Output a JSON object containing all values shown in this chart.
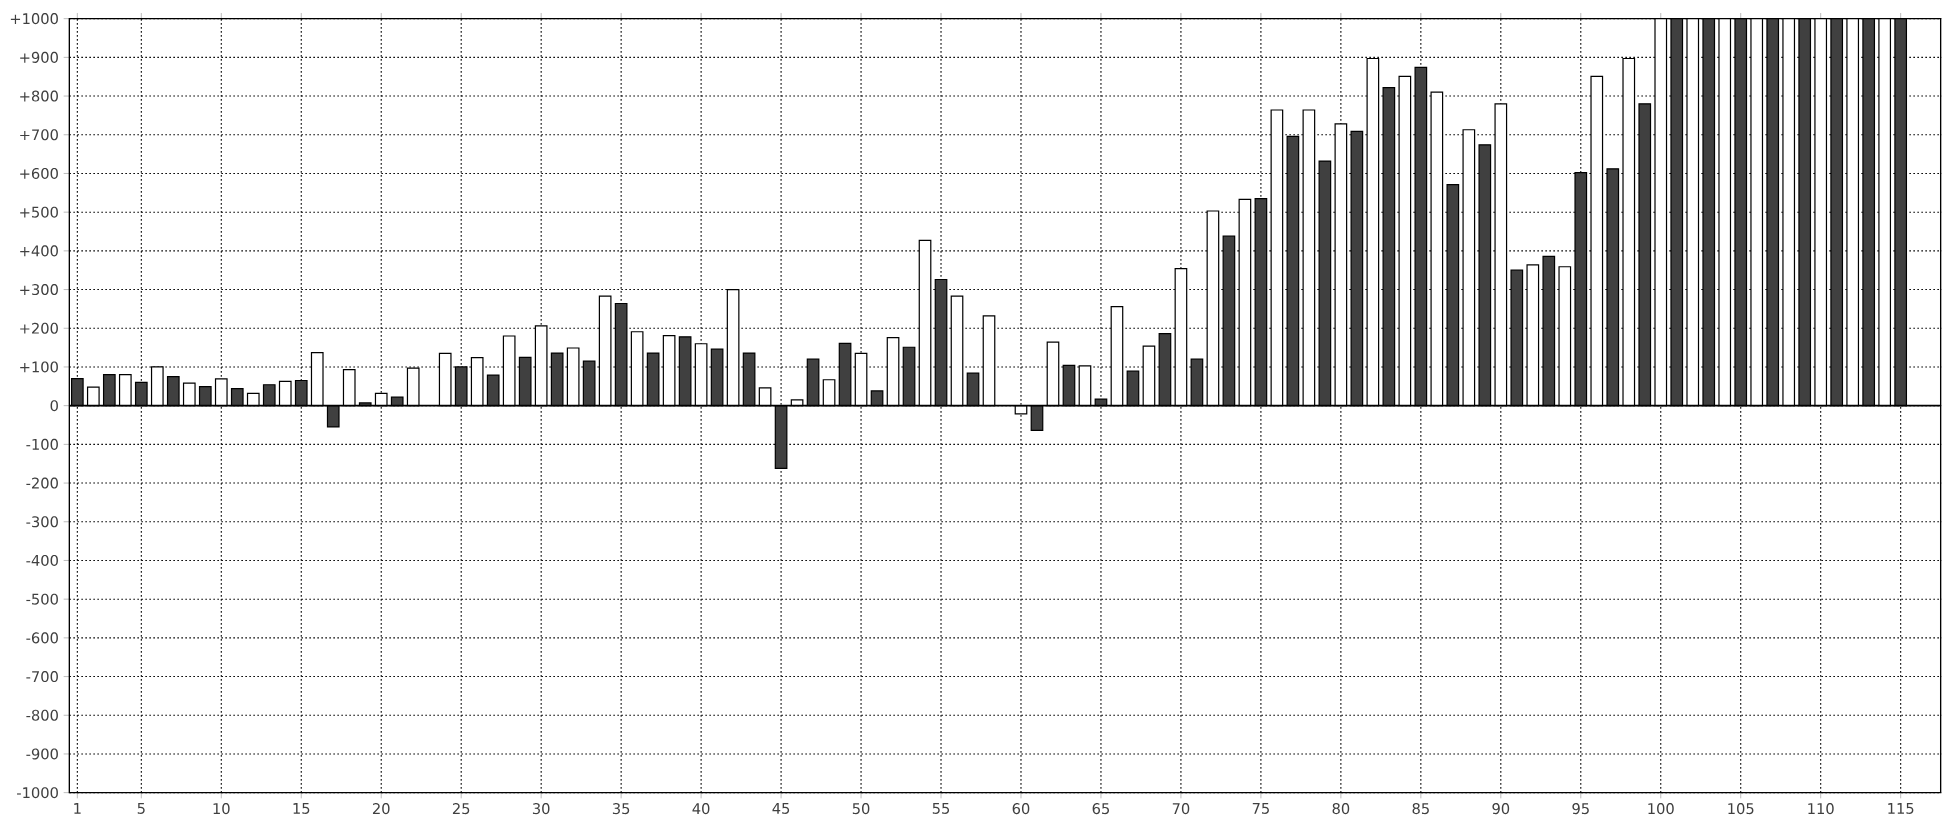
{
  "chart_data": {
    "type": "bar",
    "x": [
      1,
      2,
      3,
      4,
      5,
      6,
      7,
      8,
      9,
      10,
      11,
      12,
      13,
      14,
      15,
      16,
      17,
      18,
      19,
      20,
      21,
      22,
      23,
      24,
      25,
      26,
      27,
      28,
      29,
      30,
      31,
      32,
      33,
      34,
      35,
      36,
      37,
      38,
      39,
      40,
      41,
      42,
      43,
      44,
      45,
      46,
      47,
      48,
      49,
      50,
      51,
      52,
      53,
      54,
      55,
      56,
      57,
      58,
      59,
      60,
      61,
      62,
      63,
      64,
      65,
      66,
      67,
      68,
      69,
      70,
      71,
      72,
      73,
      74,
      75,
      76,
      77,
      78,
      79,
      80,
      81,
      82,
      83,
      84,
      85,
      86,
      87,
      88,
      89,
      90,
      91,
      92,
      93,
      94,
      95,
      96,
      97,
      98,
      99,
      100,
      101,
      102,
      103,
      104,
      105,
      106,
      107,
      108,
      109,
      110,
      111,
      112,
      113,
      114,
      115
    ],
    "values": [
      70,
      48,
      80,
      80,
      60,
      100,
      75,
      58,
      49,
      69,
      44,
      32,
      54,
      63,
      65,
      137,
      -55,
      93,
      7,
      32,
      22,
      97,
      null,
      135,
      100,
      124,
      79,
      180,
      125,
      206,
      136,
      149,
      115,
      283,
      264,
      191,
      136,
      181,
      178,
      160,
      146,
      300,
      136,
      46,
      -162,
      15,
      120,
      67,
      161,
      135,
      38,
      176,
      151,
      427,
      326,
      283,
      84,
      232,
      null,
      -21,
      -64,
      164,
      104,
      103,
      17,
      256,
      89,
      154,
      186,
      354,
      120,
      503,
      438,
      533,
      535,
      764,
      696,
      764,
      632,
      728,
      709,
      897,
      822,
      851,
      874,
      810,
      571,
      713,
      674,
      780,
      350,
      364,
      386,
      359,
      602,
      851,
      612,
      897,
      780,
      1000,
      1000,
      1000,
      1000,
      1000,
      1000,
      1000,
      1000,
      1000,
      1000,
      1000,
      1000,
      1000,
      1000,
      1000,
      1000
    ],
    "colors": [
      "#404040",
      "#ffffff",
      "#404040",
      "#ffffff",
      "#404040",
      "#ffffff",
      "#404040",
      "#ffffff",
      "#404040",
      "#ffffff",
      "#404040",
      "#ffffff",
      "#404040",
      "#ffffff",
      "#404040",
      "#ffffff",
      "#404040",
      "#ffffff",
      "#404040",
      "#ffffff",
      "#404040",
      "#ffffff",
      "#404040",
      "#ffffff",
      "#404040",
      "#ffffff",
      "#404040",
      "#ffffff",
      "#404040",
      "#ffffff",
      "#404040",
      "#ffffff",
      "#404040",
      "#ffffff",
      "#404040",
      "#ffffff",
      "#404040",
      "#ffffff",
      "#404040",
      "#ffffff",
      "#404040",
      "#ffffff",
      "#404040",
      "#ffffff",
      "#404040",
      "#ffffff",
      "#404040",
      "#ffffff",
      "#404040",
      "#ffffff",
      "#404040",
      "#ffffff",
      "#404040",
      "#ffffff",
      "#404040",
      "#ffffff",
      "#404040",
      "#ffffff",
      "#404040",
      "#ffffff",
      "#404040",
      "#ffffff",
      "#404040",
      "#ffffff",
      "#404040",
      "#ffffff",
      "#404040",
      "#ffffff",
      "#404040",
      "#ffffff",
      "#404040",
      "#ffffff",
      "#404040",
      "#ffffff",
      "#404040",
      "#ffffff",
      "#404040",
      "#ffffff",
      "#404040",
      "#ffffff",
      "#404040",
      "#ffffff",
      "#404040",
      "#ffffff",
      "#404040",
      "#ffffff",
      "#404040",
      "#ffffff",
      "#404040",
      "#ffffff",
      "#404040",
      "#ffffff",
      "#404040",
      "#ffffff",
      "#404040",
      "#ffffff",
      "#404040",
      "#ffffff",
      "#404040",
      "#ffffff",
      "#404040",
      "#ffffff",
      "#404040",
      "#ffffff",
      "#404040",
      "#ffffff",
      "#404040",
      "#ffffff",
      "#404040",
      "#ffffff",
      "#404040",
      "#ffffff",
      "#404040",
      "#ffffff",
      "#404040"
    ],
    "xlim": [
      0.5,
      117.5
    ],
    "xticks": [
      1,
      5,
      10,
      15,
      20,
      25,
      30,
      35,
      40,
      45,
      50,
      55,
      60,
      65,
      70,
      75,
      80,
      85,
      90,
      95,
      100,
      105,
      110,
      115
    ],
    "ylim": [
      -1000,
      1000
    ],
    "yticks": [
      {
        "value": 1000,
        "label": "+1000"
      },
      {
        "value": 900,
        "label": "+900"
      },
      {
        "value": 800,
        "label": "+800"
      },
      {
        "value": 700,
        "label": "+700"
      },
      {
        "value": 600,
        "label": "+600"
      },
      {
        "value": 500,
        "label": "+500"
      },
      {
        "value": 400,
        "label": "+400"
      },
      {
        "value": 300,
        "label": "+300"
      },
      {
        "value": 200,
        "label": "+200"
      },
      {
        "value": 100,
        "label": "+100"
      },
      0,
      -100,
      -200,
      -300,
      -400,
      -500,
      -600,
      -700,
      -800,
      -900,
      -1000
    ],
    "grid": true
  }
}
